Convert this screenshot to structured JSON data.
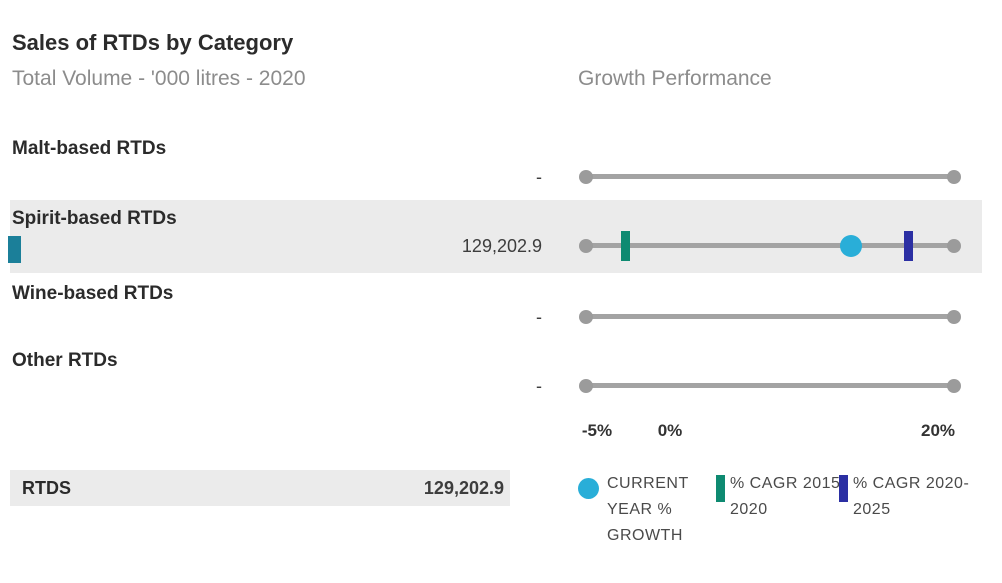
{
  "header": {
    "title": "Sales of RTDs by Category",
    "subtitle": "Total Volume - '000 litres - 2020",
    "growth_header": "Growth Performance"
  },
  "axis": {
    "min_pct": -5,
    "max_pct": 20,
    "ticks": [
      "-5%",
      "0%",
      "20%"
    ]
  },
  "rows": [
    {
      "label": "Malt-based RTDs",
      "value": "-",
      "selected": false,
      "marks": null
    },
    {
      "label": "Spirit-based RTDs",
      "value": "129,202.9",
      "selected": true,
      "marks": {
        "cagr_2015_2020_pct": -2.3,
        "current_year_growth_pct": 13.0,
        "cagr_2020_2025_pct": 16.9
      }
    },
    {
      "label": "Wine-based RTDs",
      "value": "-",
      "selected": false,
      "marks": null
    },
    {
      "label": "Other RTDs",
      "value": "-",
      "selected": false,
      "marks": null
    }
  ],
  "total_row": {
    "label": "RTDS",
    "value": "129,202.9"
  },
  "legend": [
    {
      "swatch": "circle",
      "label": "CURRENT YEAR % GROWTH",
      "color": "#29AED8"
    },
    {
      "swatch": "bar",
      "label": "% CAGR 2015-2020",
      "color": "#0E8A71"
    },
    {
      "swatch": "bar",
      "label": "% CAGR 2020-2025",
      "color": "#2B2FA3"
    }
  ],
  "colors": {
    "current_year": "#29AED8",
    "cagr_2015_2020": "#0E8A71",
    "cagr_2020_2025": "#2B2FA3",
    "volume_bar": "#1B7F99",
    "slider_track": "#A3A3A3",
    "slider_dot": "#9B9B9B",
    "row_highlight": "#EBEBEB"
  },
  "chart_data": {
    "type": "table",
    "title": "Sales of RTDs by Category",
    "subtitle": "Total Volume - '000 litres - 2020",
    "right_panel_title": "Growth Performance",
    "unit": "'000 litres",
    "year": 2020,
    "categories": [
      "Malt-based RTDs",
      "Spirit-based RTDs",
      "Wine-based RTDs",
      "Other RTDs"
    ],
    "series": [
      {
        "name": "Total Volume 2020 ('000 litres)",
        "values": [
          null,
          129202.9,
          null,
          null
        ]
      },
      {
        "name": "% CAGR 2015-2020",
        "values": [
          null,
          -2.3,
          null,
          null
        ]
      },
      {
        "name": "CURRENT YEAR % GROWTH",
        "values": [
          null,
          13.0,
          null,
          null
        ]
      },
      {
        "name": "% CAGR 2020-2025",
        "values": [
          null,
          16.9,
          null,
          null
        ]
      }
    ],
    "total": {
      "label": "RTDS",
      "value": 129202.9
    },
    "axis_range_pct": [
      -5,
      20
    ],
    "axis_tick_labels": [
      "-5%",
      "0%",
      "20%"
    ],
    "legend_position": "bottom-right",
    "grid": false
  }
}
